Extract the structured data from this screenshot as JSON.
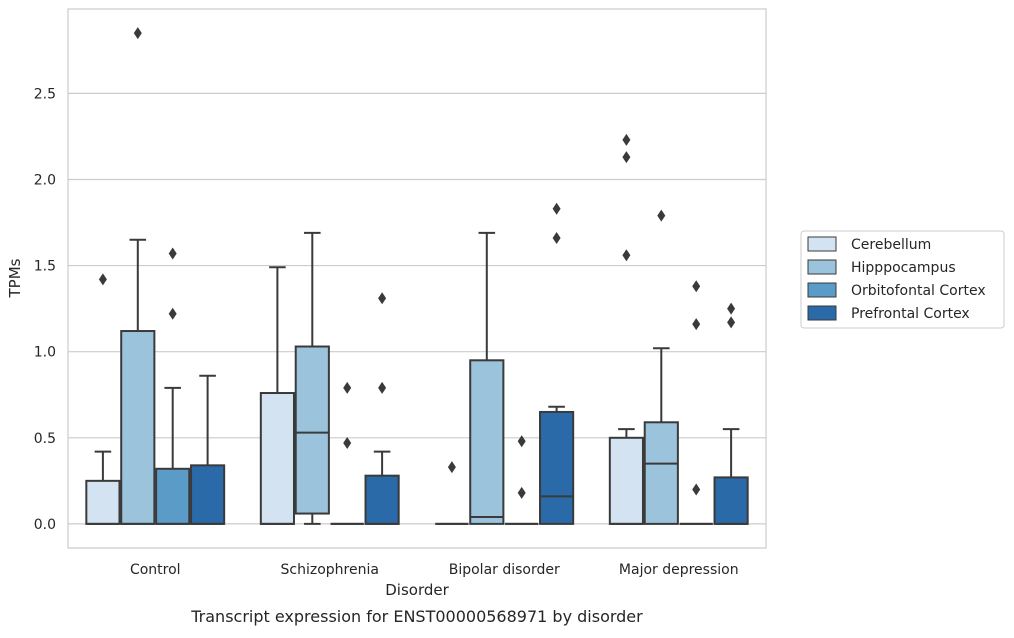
{
  "caption": "Transcript expression for ENST00000568971 by disorder",
  "chart_data": {
    "type": "box",
    "title": "",
    "xlabel": "Disorder",
    "ylabel": "TPMs",
    "ylim": [
      -0.14,
      2.99
    ],
    "yticks": [
      0.0,
      0.5,
      1.0,
      1.5,
      2.0,
      2.5
    ],
    "ytick_labels": [
      "0.0",
      "0.5",
      "1.0",
      "1.5",
      "2.0",
      "2.5"
    ],
    "grid": "horizontal",
    "legend_position": "right",
    "categories": [
      "Control",
      "Schizophrenia",
      "Bipolar disorder",
      "Major depression"
    ],
    "series": [
      {
        "name": "Cerebellum",
        "color": "#d4e3f1",
        "boxes": [
          {
            "whisker_low": 0.0,
            "q1": 0.0,
            "median": 0.0,
            "q3": 0.25,
            "whisker_high": 0.42,
            "outliers": [
              1.42
            ]
          },
          {
            "whisker_low": 0.0,
            "q1": 0.0,
            "median": 0.0,
            "q3": 0.76,
            "whisker_high": 1.49,
            "outliers": []
          },
          {
            "whisker_low": 0.0,
            "q1": 0.0,
            "median": 0.0,
            "q3": 0.0,
            "whisker_high": 0.0,
            "outliers": [
              0.33
            ]
          },
          {
            "whisker_low": 0.0,
            "q1": 0.0,
            "median": 0.0,
            "q3": 0.5,
            "whisker_high": 0.55,
            "outliers": [
              1.56,
              2.13,
              2.23
            ]
          }
        ]
      },
      {
        "name": "Hipppocampus",
        "color": "#9bc3db",
        "boxes": [
          {
            "whisker_low": 0.0,
            "q1": 0.0,
            "median": 0.0,
            "q3": 1.12,
            "whisker_high": 1.65,
            "outliers": [
              2.85
            ]
          },
          {
            "whisker_low": 0.0,
            "q1": 0.06,
            "median": 0.53,
            "q3": 1.03,
            "whisker_high": 1.69,
            "outliers": []
          },
          {
            "whisker_low": 0.0,
            "q1": 0.0,
            "median": 0.04,
            "q3": 0.95,
            "whisker_high": 1.69,
            "outliers": []
          },
          {
            "whisker_low": 0.0,
            "q1": 0.0,
            "median": 0.35,
            "q3": 0.59,
            "whisker_high": 1.02,
            "outliers": [
              1.79
            ]
          }
        ]
      },
      {
        "name": "Orbitofontal Cortex",
        "color": "#5a9bc8",
        "boxes": [
          {
            "whisker_low": 0.0,
            "q1": 0.0,
            "median": 0.0,
            "q3": 0.32,
            "whisker_high": 0.79,
            "outliers": [
              1.22,
              1.57
            ]
          },
          {
            "whisker_low": 0.0,
            "q1": 0.0,
            "median": 0.0,
            "q3": 0.0,
            "whisker_high": 0.0,
            "outliers": [
              0.47,
              0.79
            ]
          },
          {
            "whisker_low": 0.0,
            "q1": 0.0,
            "median": 0.0,
            "q3": 0.0,
            "whisker_high": 0.0,
            "outliers": [
              0.18,
              0.48
            ]
          },
          {
            "whisker_low": 0.0,
            "q1": 0.0,
            "median": 0.0,
            "q3": 0.0,
            "whisker_high": 0.0,
            "outliers": [
              0.2,
              1.16,
              1.38
            ]
          }
        ]
      },
      {
        "name": "Prefrontal Cortex",
        "color": "#2a6aa8",
        "boxes": [
          {
            "whisker_low": 0.0,
            "q1": 0.0,
            "median": 0.0,
            "q3": 0.34,
            "whisker_high": 0.86,
            "outliers": []
          },
          {
            "whisker_low": 0.0,
            "q1": 0.0,
            "median": 0.0,
            "q3": 0.28,
            "whisker_high": 0.42,
            "outliers": [
              0.79,
              1.31
            ]
          },
          {
            "whisker_low": 0.0,
            "q1": 0.0,
            "median": 0.16,
            "q3": 0.65,
            "whisker_high": 0.68,
            "outliers": [
              1.66,
              1.83
            ]
          },
          {
            "whisker_low": 0.0,
            "q1": 0.0,
            "median": 0.0,
            "q3": 0.27,
            "whisker_high": 0.55,
            "outliers": [
              1.17,
              1.25
            ]
          }
        ]
      }
    ],
    "colors": {
      "frame": "#cccccc",
      "grid": "#cccccc",
      "line": "#3a3a3a"
    }
  }
}
